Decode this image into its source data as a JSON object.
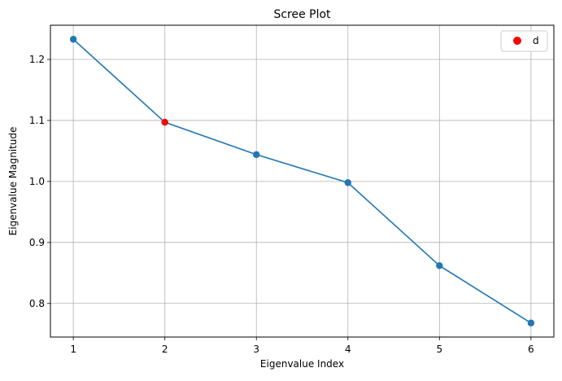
{
  "chart_data": {
    "type": "line",
    "title": "Scree Plot",
    "xlabel": "Eigenvalue Index",
    "ylabel": "Eigenvalue Magnitude",
    "x": [
      1,
      2,
      3,
      4,
      5,
      6
    ],
    "series": [
      {
        "values": [
          1.233,
          1.097,
          1.044,
          0.998,
          0.862,
          0.768
        ],
        "color": "#1f77b4",
        "marker": "circle"
      }
    ],
    "highlight": {
      "name": "d",
      "x": 2,
      "y": 1.097,
      "color": "#ff0000"
    },
    "xticks": [
      1,
      2,
      3,
      4,
      5,
      6
    ],
    "yticks": [
      0.8,
      0.9,
      1.0,
      1.1,
      1.2
    ],
    "xlim": [
      0.75,
      6.25
    ],
    "ylim": [
      0.745,
      1.256
    ],
    "grid": true,
    "legend_position": "top-right"
  },
  "labels": {
    "ytick_labels": [
      "0.8",
      "0.9",
      "1.0",
      "1.1",
      "1.2"
    ],
    "xtick_labels": [
      "1",
      "2",
      "3",
      "4",
      "5",
      "6"
    ]
  }
}
